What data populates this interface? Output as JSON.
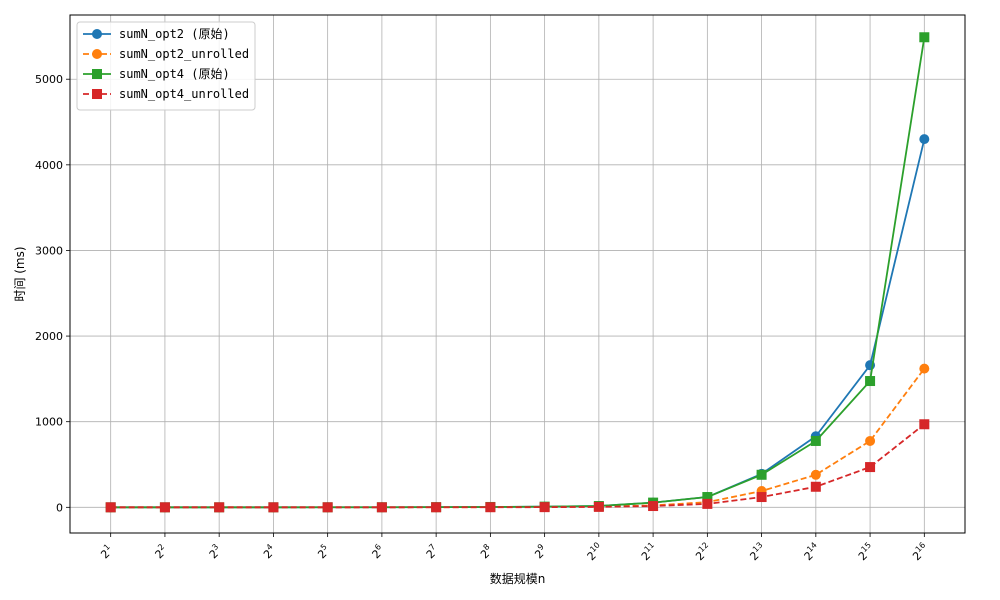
{
  "chart_data": {
    "type": "line",
    "title": "",
    "xlabel": "数据规模n",
    "ylabel": "时间 (ms)",
    "x_base": "2",
    "x": [
      1,
      2,
      3,
      4,
      5,
      6,
      7,
      8,
      9,
      10,
      11,
      12,
      13,
      14,
      15,
      16
    ],
    "ylim": [
      -300,
      5750
    ],
    "yticks": [
      0,
      1000,
      2000,
      3000,
      4000,
      5000
    ],
    "grid": true,
    "legend_position": "top-left",
    "series": [
      {
        "name": "sumN_opt2 (原始)",
        "color": "#1f77b4",
        "line_style": "solid",
        "marker": "circle",
        "values": [
          0,
          0,
          0,
          0,
          0.5,
          1,
          2,
          4,
          7,
          15,
          55,
          120,
          390,
          830,
          1660,
          4300
        ]
      },
      {
        "name": "sumN_opt2_unrolled",
        "color": "#ff7f0e",
        "line_style": "dashed",
        "marker": "circle",
        "values": [
          0,
          0,
          0,
          0,
          0,
          0.5,
          1,
          2,
          4,
          8,
          22,
          60,
          190,
          380,
          775,
          1620
        ]
      },
      {
        "name": "sumN_opt4 (原始)",
        "color": "#2ca02c",
        "line_style": "solid",
        "marker": "square",
        "values": [
          0,
          0,
          0,
          0,
          0.5,
          1,
          2,
          4,
          8,
          15,
          55,
          120,
          380,
          775,
          1475,
          5490
        ]
      },
      {
        "name": "sumN_opt4_unrolled",
        "color": "#d62728",
        "line_style": "dashed",
        "marker": "square",
        "values": [
          0,
          0,
          0,
          0,
          0,
          0,
          0.5,
          1,
          2,
          5,
          15,
          40,
          120,
          240,
          470,
          970
        ]
      }
    ]
  }
}
